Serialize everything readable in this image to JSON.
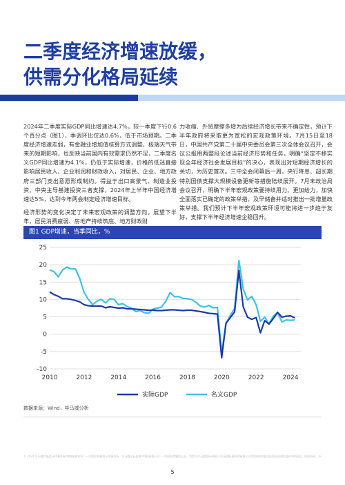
{
  "title": {
    "line1": "二季度经济增速放缓，",
    "line2": "供需分化格局延续"
  },
  "body": {
    "left_p1": "2024年二季度实际GDP同比增速达4.7%，较一季度下行0.6个百分点（图1），季调环比仅达0.6%，低于市场预期。二季度经济增速走弱，有金融业增加值核算方式调整、极端天气带来的短期影响，也反映当前国内有效需求仍然不足，二季度名义GDP同比增速为4.1%，仍低于实际增速，价格的低迷直接影响居民收入、企业利润和财政收入，对居民、企业、地方政府三部门支出意愿形成制约。得益于出口高景气、制造业投资、中央主导基建投资三者支撑，2024年上半年中国经济增速达5%，达到今年两会制定经济增速目标。",
    "left_p2": "经济形势的变化决定了未来宏观政策的调整方向。展望下半年，居民消费疲弱、房地产持续筑底、地方财政财",
    "right_p1": "力收缩、外贸摩擦多增为后续经济增长带来不确定性，预计下半年政府将采取更为宽松的宏观政策环境。7月15日至18日，中国共产党第二十届中央委员会第三次全体会议召开，会议公报用两整段论述当前经济形势和任务，明确“坚定不移实现全年经济社会发展目标”的决心，表现出对短期经济增长的关切，为历史首次。三中全会闭幕后一周，央行降息、超长期特别国债支撑大规模设备更新等措施陆续展开。7月末政治局会议召开，明确下半年宏观政策要持续用力、更加给力，加快全面落实已确定的政策举措，及早储备并适时推出一批增量政策举措。我们预计下半年宏观政策环境可能将进一步趋于友好，支撑下半年经济增速企稳回升。"
  },
  "figure": {
    "title": "图1 GDP增速，当季同比，%",
    "source": "数据来源：Wind，毕马威分析"
  },
  "disclaimer": "© 2024 毕马威华振会计师事务所(特殊普通合伙) — 中国合伙制会计师事务所、毕马威企业咨询(中国)有限公司 — 中国外商独资企业，均是与毕马威国际有限公司(英国私营担保有限公司)相关联的独立成员所全球性组织中的成员。版权所有，不得转载。在中国印刷。毕马威的名称和标识均为毕马威全球性组织中的独立成员所经许可后使用的商标。",
  "page_number": "5",
  "colors": {
    "title": "#1f3fa0",
    "band_dark": "#1e3a9e",
    "band_light": "#bfd8f3",
    "fig_bar": "#2a46b0",
    "real_gdp": "#1c3aa8",
    "nominal_gdp": "#3cc1e6"
  },
  "chart_data": {
    "type": "line",
    "x_tick_labels": [
      "2010",
      "2012",
      "2014",
      "2016",
      "2018",
      "2020",
      "2022",
      "2024"
    ],
    "y_tick_labels": [
      "-10",
      "-5",
      "0",
      "5",
      "10",
      "15",
      "20",
      "25"
    ],
    "xlim": [
      2010.0,
      2024.6
    ],
    "ylim": [
      -10,
      25
    ],
    "legend_position": "bottom",
    "series": [
      {
        "name": "实际GDP",
        "points": [
          [
            2010.0,
            12.2
          ],
          [
            2010.25,
            11.4
          ],
          [
            2010.5,
            10.9
          ],
          [
            2010.75,
            10.2
          ],
          [
            2011.0,
            10.2
          ],
          [
            2011.25,
            10.0
          ],
          [
            2011.5,
            9.7
          ],
          [
            2011.75,
            9.3
          ],
          [
            2012.0,
            8.5
          ],
          [
            2012.25,
            8.2
          ],
          [
            2012.5,
            8.1
          ],
          [
            2012.75,
            8.1
          ],
          [
            2013.0,
            8.1
          ],
          [
            2013.25,
            7.6
          ],
          [
            2013.5,
            7.9
          ],
          [
            2013.75,
            7.7
          ],
          [
            2014.0,
            7.5
          ],
          [
            2014.25,
            7.6
          ],
          [
            2014.5,
            7.3
          ],
          [
            2014.75,
            7.3
          ],
          [
            2015.0,
            7.2
          ],
          [
            2015.25,
            7.1
          ],
          [
            2015.5,
            7.0
          ],
          [
            2015.75,
            6.9
          ],
          [
            2016.0,
            6.9
          ],
          [
            2016.25,
            6.8
          ],
          [
            2016.5,
            6.8
          ],
          [
            2016.75,
            6.9
          ],
          [
            2017.0,
            7.0
          ],
          [
            2017.25,
            7.0
          ],
          [
            2017.5,
            6.9
          ],
          [
            2017.75,
            6.8
          ],
          [
            2018.0,
            6.9
          ],
          [
            2018.25,
            6.9
          ],
          [
            2018.5,
            6.7
          ],
          [
            2018.75,
            6.5
          ],
          [
            2019.0,
            6.3
          ],
          [
            2019.25,
            6.0
          ],
          [
            2019.5,
            5.9
          ],
          [
            2019.75,
            5.8
          ],
          [
            2020.0,
            -6.8
          ],
          [
            2020.25,
            3.1
          ],
          [
            2020.5,
            4.8
          ],
          [
            2020.75,
            6.4
          ],
          [
            2021.0,
            18.3
          ],
          [
            2021.25,
            7.9
          ],
          [
            2021.5,
            4.9
          ],
          [
            2021.75,
            4.3
          ],
          [
            2022.0,
            4.8
          ],
          [
            2022.25,
            0.4
          ],
          [
            2022.5,
            3.9
          ],
          [
            2022.75,
            2.9
          ],
          [
            2023.0,
            4.5
          ],
          [
            2023.25,
            6.3
          ],
          [
            2023.5,
            4.9
          ],
          [
            2023.75,
            5.2
          ],
          [
            2024.0,
            5.3
          ],
          [
            2024.25,
            4.7
          ]
        ]
      },
      {
        "name": "名义GDP",
        "points": [
          [
            2010.0,
            18.5
          ],
          [
            2010.25,
            18.0
          ],
          [
            2010.5,
            16.5
          ],
          [
            2010.75,
            18.5
          ],
          [
            2011.0,
            19.3
          ],
          [
            2011.25,
            18.8
          ],
          [
            2011.5,
            18.8
          ],
          [
            2011.75,
            16.0
          ],
          [
            2012.0,
            12.0
          ],
          [
            2012.25,
            10.0
          ],
          [
            2012.5,
            8.5
          ],
          [
            2012.75,
            9.5
          ],
          [
            2013.0,
            10.0
          ],
          [
            2013.25,
            9.0
          ],
          [
            2013.5,
            10.2
          ],
          [
            2013.75,
            10.0
          ],
          [
            2014.0,
            8.5
          ],
          [
            2014.25,
            8.8
          ],
          [
            2014.5,
            8.0
          ],
          [
            2014.75,
            7.5
          ],
          [
            2015.0,
            6.5
          ],
          [
            2015.25,
            6.8
          ],
          [
            2015.5,
            6.2
          ],
          [
            2015.75,
            6.0
          ],
          [
            2016.0,
            7.2
          ],
          [
            2016.25,
            7.5
          ],
          [
            2016.5,
            7.8
          ],
          [
            2016.75,
            9.5
          ],
          [
            2017.0,
            12.0
          ],
          [
            2017.25,
            10.8
          ],
          [
            2017.5,
            10.8
          ],
          [
            2017.75,
            10.3
          ],
          [
            2018.0,
            10.2
          ],
          [
            2018.25,
            10.0
          ],
          [
            2018.5,
            9.2
          ],
          [
            2018.75,
            8.1
          ],
          [
            2019.0,
            7.8
          ],
          [
            2019.25,
            8.3
          ],
          [
            2019.5,
            7.6
          ],
          [
            2019.75,
            7.7
          ],
          [
            2020.0,
            -5.3
          ],
          [
            2020.25,
            3.2
          ],
          [
            2020.5,
            5.5
          ],
          [
            2020.75,
            7.4
          ],
          [
            2021.0,
            21.2
          ],
          [
            2021.25,
            13.0
          ],
          [
            2021.5,
            9.8
          ],
          [
            2021.75,
            10.9
          ],
          [
            2022.0,
            8.5
          ],
          [
            2022.25,
            3.7
          ],
          [
            2022.5,
            4.9
          ],
          [
            2022.75,
            3.0
          ],
          [
            2023.0,
            5.2
          ],
          [
            2023.25,
            6.2
          ],
          [
            2023.5,
            3.5
          ],
          [
            2023.75,
            4.1
          ],
          [
            2024.0,
            4.0
          ],
          [
            2024.25,
            4.1
          ]
        ]
      }
    ]
  }
}
